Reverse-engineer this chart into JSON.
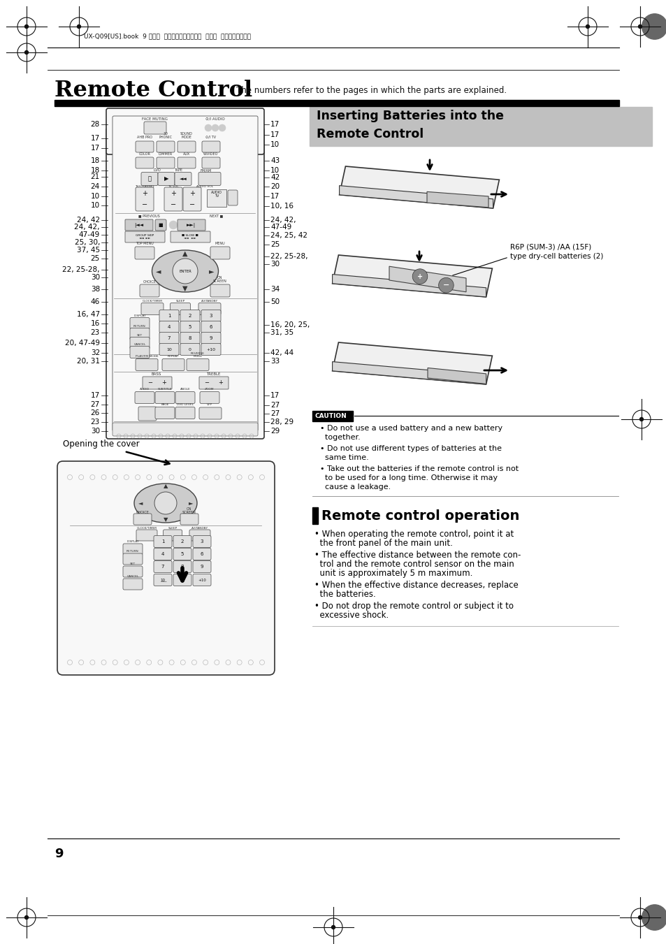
{
  "page_bg": "#ffffff",
  "title_main": "Remote Control",
  "title_sub": "The numbers refer to the pages in which the parts are explained.",
  "header_text_jp": "UX-Q09[US].book  9 ページ  ２００４年１０月８日  金曜日  午前１０時２７分",
  "section2_title_line1": "Inserting Batteries into the",
  "section2_title_line2": "Remote Control",
  "section2_bg": "#c0c0c0",
  "battery_label": "R6P (SUM-3) /AA (15F)\ntype dry-cell batteries (2)",
  "caution_title": "CAUTION",
  "caution_items": [
    "• Do not use a used battery and a new battery\n  together.",
    "• Do not use different types of batteries at the\n  same time.",
    "• Take out the batteries if the remote control is not\n  to be used for a long time. Otherwise it may\n  cause a leakage."
  ],
  "section3_title": "Remote control operation",
  "operation_items": [
    "• When operating the remote control, point it at\n  the front panel of the main unit.",
    "• The effective distance between the remote con-\n  trol and the remote control sensor on the main\n  unit is approximately 5 m maximum.",
    "• When the effective distance decreases, replace\n  the batteries.",
    "• Do not drop the remote control or subject it to\n  excessive shock."
  ],
  "page_number": "9",
  "left_labels": [
    [
      "28",
      178
    ],
    [
      "17",
      198
    ],
    [
      "17",
      212
    ],
    [
      "18",
      230
    ],
    [
      "18",
      244
    ],
    [
      "21",
      253
    ],
    [
      "24",
      267
    ],
    [
      "10",
      281
    ],
    [
      "10",
      294
    ],
    [
      "24, 42",
      315
    ],
    [
      "24, 42,",
      325
    ],
    [
      "47-49",
      336
    ],
    [
      "25, 30,",
      347
    ],
    [
      "37, 45",
      358
    ],
    [
      "25",
      370
    ],
    [
      "22, 25-28,",
      386
    ],
    [
      "30",
      397
    ],
    [
      "38",
      414
    ],
    [
      "46",
      432
    ],
    [
      "16, 47",
      450
    ],
    [
      "16",
      463
    ],
    [
      "23",
      476
    ],
    [
      "20, 47-49",
      491
    ],
    [
      "32",
      505
    ],
    [
      "20, 31",
      517
    ],
    [
      "17",
      566
    ],
    [
      "27",
      579
    ],
    [
      "26",
      591
    ],
    [
      "23",
      604
    ],
    [
      "30",
      617
    ]
  ],
  "right_labels": [
    [
      "17",
      178
    ],
    [
      "17",
      193
    ],
    [
      "10",
      207
    ],
    [
      "43",
      230
    ],
    [
      "10",
      244
    ],
    [
      "42",
      254
    ],
    [
      "20",
      267
    ],
    [
      "17",
      281
    ],
    [
      "10, 16",
      295
    ],
    [
      "24, 42,",
      315
    ],
    [
      "47-49",
      325
    ],
    [
      "24, 25, 42",
      337
    ],
    [
      "25",
      350
    ],
    [
      "22, 25-28,",
      367
    ],
    [
      "30",
      378
    ],
    [
      "34",
      414
    ],
    [
      "50",
      432
    ],
    [
      "16, 20, 25,",
      465
    ],
    [
      "31, 35",
      476
    ],
    [
      "42, 44",
      505
    ],
    [
      "33",
      517
    ],
    [
      "17",
      566
    ],
    [
      "27",
      580
    ],
    [
      "27",
      592
    ],
    [
      "28, 29",
      604
    ],
    [
      "29",
      617
    ]
  ],
  "remote_body_color": "#f8f8f8",
  "remote_edge_color": "#333333",
  "opening_cover_label": "Opening the cover"
}
